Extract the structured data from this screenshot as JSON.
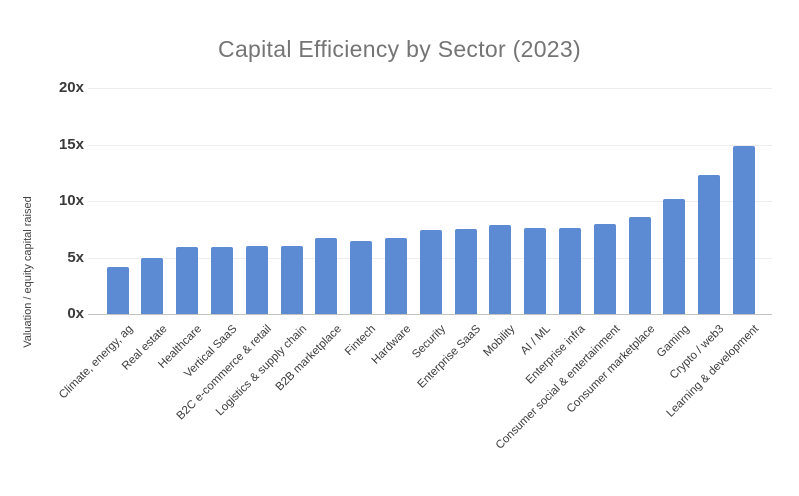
{
  "page": {
    "background_color": "#ffffff"
  },
  "colors": {
    "title_text": "#757575",
    "axis_tick_text": "#3a3a3a",
    "x_label_text": "#3c3c3c",
    "gridline": "#ededed",
    "baseline": "#c2c2c2",
    "bar": "#5d8bd3"
  },
  "chart_data": {
    "type": "bar",
    "title": "Capital Efficiency by Sector (2023)",
    "xlabel": "",
    "ylabel": "Valuation / equity capital raised",
    "ylim": [
      0,
      20
    ],
    "grid": true,
    "legend": false,
    "bar_color": "#5d8bd3",
    "yticks": [
      {
        "value": 0,
        "label": "0x"
      },
      {
        "value": 5,
        "label": "5x"
      },
      {
        "value": 10,
        "label": "10x"
      },
      {
        "value": 15,
        "label": "15x"
      },
      {
        "value": 20,
        "label": "20x"
      }
    ],
    "categories": [
      "Climate, energy, ag",
      "Real estate",
      "Healthcare",
      "Vertical SaaS",
      "B2C e-commerce & retail",
      "Logistics & supply chain",
      "B2B marketplace",
      "Fintech",
      "Hardware",
      "Security",
      "Enterprise SaaS",
      "Mobility",
      "AI / ML",
      "Enterprise infra",
      "Consumer social & entertainment",
      "Consumer marketplace",
      "Gaming",
      "Crypto / web3",
      "Learning & development"
    ],
    "values": [
      4.2,
      5.0,
      5.9,
      5.9,
      6.0,
      6.0,
      6.7,
      6.5,
      6.7,
      7.4,
      7.5,
      7.9,
      7.6,
      7.6,
      8.0,
      8.6,
      10.2,
      12.3,
      14.9
    ]
  }
}
